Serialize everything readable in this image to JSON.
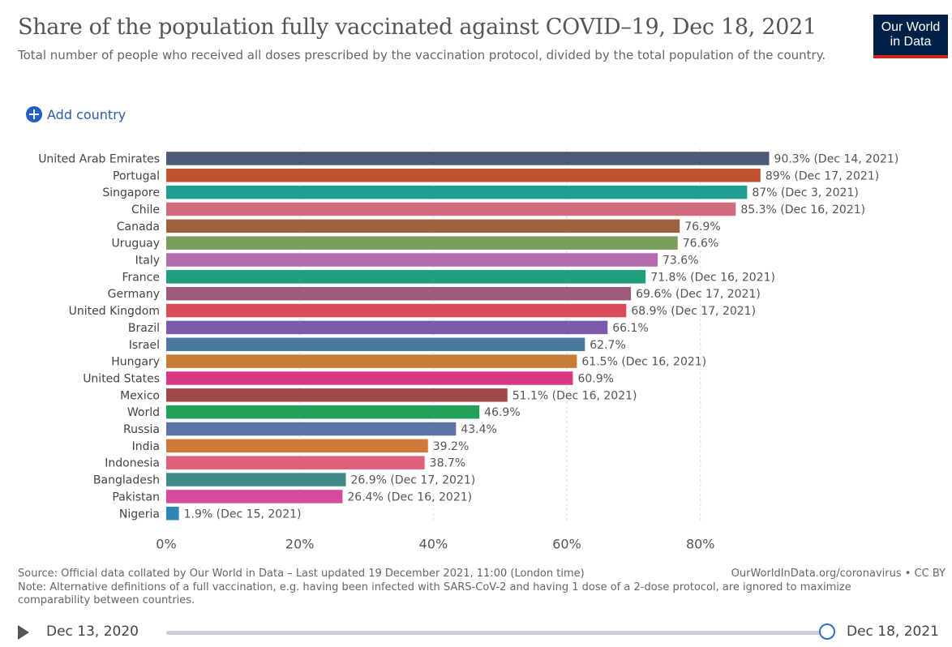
{
  "header": {
    "title": "Share of the population fully vaccinated against COVID–19, Dec 18, 2021",
    "subtitle": "Total number of people who received all doses prescribed by the vaccination protocol, divided by the total population of the country.",
    "logo_line1": "Our World",
    "logo_line2": "in Data",
    "add_country_label": "Add country"
  },
  "chart_data": {
    "type": "bar",
    "orientation": "horizontal",
    "categories": [
      "United Arab Emirates",
      "Portugal",
      "Singapore",
      "Chile",
      "Canada",
      "Uruguay",
      "Italy",
      "France",
      "Germany",
      "United Kingdom",
      "Brazil",
      "Israel",
      "Hungary",
      "United States",
      "Mexico",
      "World",
      "Russia",
      "India",
      "Indonesia",
      "Bangladesh",
      "Pakistan",
      "Nigeria"
    ],
    "values": [
      90.3,
      89,
      87,
      85.3,
      76.9,
      76.6,
      73.6,
      71.8,
      69.6,
      68.9,
      66.1,
      62.7,
      61.5,
      60.9,
      51.1,
      46.9,
      43.4,
      39.2,
      38.7,
      26.9,
      26.4,
      1.9
    ],
    "labels": [
      "90.3% (Dec 14, 2021)",
      "89% (Dec 17, 2021)",
      "87% (Dec 3, 2021)",
      "85.3% (Dec 16, 2021)",
      "76.9%",
      "76.6%",
      "73.6%",
      "71.8% (Dec 16, 2021)",
      "69.6% (Dec 17, 2021)",
      "68.9% (Dec 17, 2021)",
      "66.1%",
      "62.7%",
      "61.5% (Dec 16, 2021)",
      "60.9%",
      "51.1% (Dec 16, 2021)",
      "46.9%",
      "43.4%",
      "39.2%",
      "38.7%",
      "26.9% (Dec 17, 2021)",
      "26.4% (Dec 16, 2021)",
      "1.9% (Dec 15, 2021)"
    ],
    "colors": [
      "#4c5a78",
      "#c0522f",
      "#1f9e8f",
      "#d06b7e",
      "#a0623e",
      "#789e5e",
      "#b46cb0",
      "#1d9e7c",
      "#9e5a7a",
      "#dc4b5c",
      "#7a5aac",
      "#4a789e",
      "#c77d36",
      "#d93882",
      "#9e4a4a",
      "#21a05a",
      "#5a74a6",
      "#d07a3a",
      "#e0607a",
      "#3f8a84",
      "#d54a9e",
      "#2e85b7"
    ],
    "xlim": [
      0,
      94
    ],
    "x_ticks": [
      0,
      20,
      40,
      60,
      80
    ],
    "x_tick_labels": [
      "0%",
      "20%",
      "40%",
      "60%",
      "80%"
    ]
  },
  "footer": {
    "source": "Source: Official data collated by Our World in Data – Last updated 19 December 2021, 11:00 (London time)",
    "link": "OurWorldInData.org/coronavirus • CC BY",
    "note": "Note: Alternative definitions of a full vaccination, e.g. having been infected with SARS-CoV-2 and having 1 dose of a 2-dose protocol, are ignored to maximize comparability between countries."
  },
  "timeline": {
    "start_date": "Dec 13, 2020",
    "end_date": "Dec 18, 2021",
    "position": 1.0
  }
}
